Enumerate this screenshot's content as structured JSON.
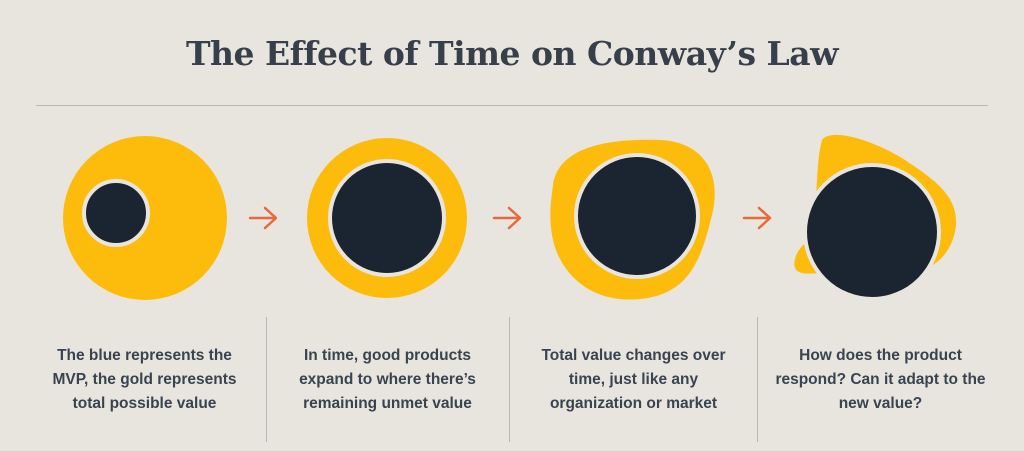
{
  "title": "The Effect of Time on Conway’s Law",
  "colors": {
    "background": "#e8e5df",
    "gold": "#fdbb0c",
    "blue": "#1b2431",
    "ring": "#e8e5df",
    "arrow": "#e9683b",
    "text": "#3a4350"
  },
  "stages": [
    {
      "caption": "The blue represents the MVP, the gold represents total possible value"
    },
    {
      "caption": "In time, good products expand to where there’s remaining unmet value"
    },
    {
      "caption": "Total value changes over time, just like any organization or market"
    },
    {
      "caption": "How does the product respond? Can it adapt to the new value?"
    }
  ],
  "arrows": [
    "arrow-right-icon",
    "arrow-right-icon",
    "arrow-right-icon"
  ]
}
